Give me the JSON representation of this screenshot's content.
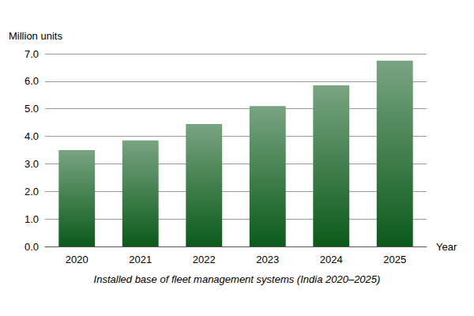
{
  "chart_data": {
    "type": "bar",
    "title": "Installed base of fleet management systems (India 2020–2025)",
    "x_label": "Year",
    "y_label": "Million units",
    "categories": [
      "2020",
      "2021",
      "2022",
      "2023",
      "2024",
      "2025"
    ],
    "values": [
      3.5,
      3.85,
      4.45,
      5.1,
      5.85,
      6.75
    ],
    "color": "#0b5a1a",
    "ylim": [
      0,
      7
    ],
    "yticks": [
      {
        "value": 0,
        "label": "0.0"
      },
      {
        "value": 1,
        "label": "1.0"
      },
      {
        "value": 2,
        "label": "2.0"
      },
      {
        "value": 3,
        "label": "3.0"
      },
      {
        "value": 4,
        "label": "4.0"
      },
      {
        "value": 5,
        "label": "5.0"
      },
      {
        "value": 6,
        "label": "6.0"
      },
      {
        "value": 7,
        "label": "7.0"
      }
    ],
    "grid": true
  }
}
